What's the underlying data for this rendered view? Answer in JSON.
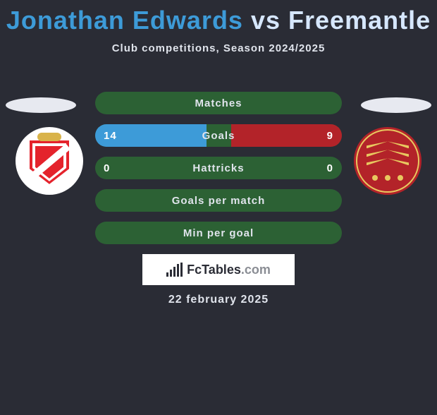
{
  "title": {
    "name1": "Jonathan Edwards",
    "vs": "vs",
    "name2": "Freemantle"
  },
  "subtitle": "Club competitions, Season 2024/2025",
  "colors": {
    "left_fill": "#3d9bd8",
    "right_fill": "#b32329",
    "pill_bg": "#2c6134"
  },
  "rows": [
    {
      "label": "Matches",
      "left": null,
      "right": null,
      "left_pct": 0,
      "right_pct": 0
    },
    {
      "label": "Goals",
      "left": "14",
      "right": "9",
      "left_pct": 45,
      "right_pct": 45
    },
    {
      "label": "Hattricks",
      "left": "0",
      "right": "0",
      "left_pct": 0,
      "right_pct": 0
    },
    {
      "label": "Goals per match",
      "left": null,
      "right": null,
      "left_pct": 0,
      "right_pct": 0
    },
    {
      "label": "Min per goal",
      "left": null,
      "right": null,
      "left_pct": 0,
      "right_pct": 0
    }
  ],
  "logo": {
    "text_main": "FcTables",
    "text_suffix": ".com"
  },
  "date": "22 february 2025",
  "crest_colors": {
    "left_primary": "#e4232c",
    "left_accent": "#d9b34a",
    "right_primary": "#b32329",
    "right_accent": "#e8c85f"
  }
}
